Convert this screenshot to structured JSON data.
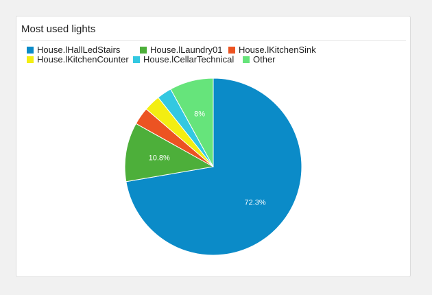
{
  "card": {
    "title": "Most used lights"
  },
  "chart_data": {
    "type": "pie",
    "title": "Most used lights",
    "legend_position": "top-left",
    "series": [
      {
        "name": "House.lHallLedStairs",
        "value": 72.3,
        "label": "72.3%",
        "color": "#0b8bc8"
      },
      {
        "name": "House.lLaundry01",
        "value": 10.8,
        "label": "10.8%",
        "color": "#4daf3a"
      },
      {
        "name": "House.lKitchenSink",
        "value": 3.2,
        "label": "",
        "color": "#ec5322"
      },
      {
        "name": "House.lKitchenCounter",
        "value": 3.0,
        "label": "",
        "color": "#f3ee12"
      },
      {
        "name": "House.lCellarTechnical",
        "value": 2.7,
        "label": "",
        "color": "#33c8e1"
      },
      {
        "name": "Other",
        "value": 8.0,
        "label": "8%",
        "color": "#66e47b"
      }
    ]
  }
}
